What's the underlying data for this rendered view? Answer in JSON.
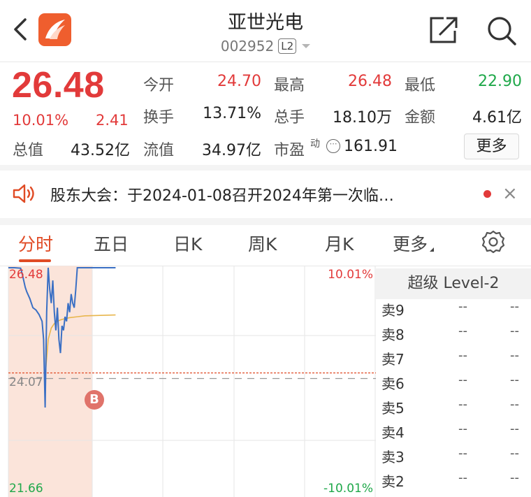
{
  "header": {
    "title": "亚世光电",
    "code": "002952",
    "level_badge": "L2"
  },
  "quote": {
    "price": "26.48",
    "change_pct": "10.01%",
    "change_val": "2.41",
    "stats": [
      {
        "label": "今开",
        "value": "24.70",
        "color": "red"
      },
      {
        "label": "最高",
        "value": "26.48",
        "color": "red"
      },
      {
        "label": "最低",
        "value": "22.90",
        "color": "green"
      },
      {
        "label": "换手",
        "value": "13.71%",
        "color": "black"
      },
      {
        "label": "总手",
        "value": "18.10万",
        "color": "black"
      },
      {
        "label": "金额",
        "value": "4.61亿",
        "color": "black"
      },
      {
        "label": "总值",
        "value": "43.52亿",
        "color": "black"
      },
      {
        "label": "流值",
        "value": "34.97亿",
        "color": "black"
      }
    ],
    "pe": {
      "label": "市盈",
      "superscript": "动",
      "value": "161.91"
    },
    "more_label": "更多"
  },
  "notice": {
    "text": "股东大会：于2024-01-08召开2024年第一次临…"
  },
  "tabs": [
    {
      "label": "分时",
      "active": true
    },
    {
      "label": "五日",
      "active": false
    },
    {
      "label": "日K",
      "active": false
    },
    {
      "label": "周K",
      "active": false
    },
    {
      "label": "月K",
      "active": false
    },
    {
      "label": "更多",
      "active": false
    }
  ],
  "chart_data": {
    "type": "line",
    "title": "分时",
    "y_labels": {
      "top": "26.48",
      "mid": "24.07",
      "bottom": "21.66"
    },
    "pct_labels": {
      "top": "10.01%",
      "bottom": "-10.01%"
    },
    "ylim": [
      21.66,
      26.48
    ],
    "prev_close": 24.07,
    "marker": "B",
    "series": [
      {
        "name": "price",
        "color": "#3a6fc4",
        "x": [
          0,
          4,
          8,
          9,
          10,
          11,
          12,
          14,
          16,
          18,
          20,
          22,
          23,
          24,
          25,
          26,
          27,
          28,
          29,
          30,
          31,
          32,
          33,
          34,
          35,
          36,
          37,
          38,
          39,
          40,
          41,
          42,
          43,
          44,
          45,
          46,
          50,
          60,
          70
        ],
        "values": [
          26.48,
          26.48,
          26.47,
          26.35,
          26.2,
          26.05,
          25.95,
          25.8,
          25.6,
          25.55,
          25.45,
          25.3,
          24.9,
          23.4,
          25.5,
          26.48,
          26.0,
          25.7,
          26.2,
          25.5,
          25.1,
          25.6,
          24.9,
          24.6,
          25.2,
          25.1,
          25.4,
          25.3,
          25.7,
          25.5,
          25.9,
          25.7,
          25.6,
          26.0,
          26.48,
          26.48,
          26.48,
          26.48,
          26.48
        ]
      },
      {
        "name": "avg",
        "color": "#e8b64c",
        "x": [
          24,
          26,
          28,
          30,
          32,
          34,
          36,
          40,
          45,
          50,
          60,
          70
        ],
        "values": [
          24.07,
          24.9,
          25.15,
          25.25,
          25.3,
          25.33,
          25.35,
          25.38,
          25.4,
          25.42,
          25.43,
          25.44
        ]
      }
    ],
    "x_max": 240
  },
  "level2": {
    "title": "超级 Level-2",
    "rows": [
      {
        "name": "卖9",
        "price": "--",
        "vol": "--"
      },
      {
        "name": "卖8",
        "price": "--",
        "vol": "--"
      },
      {
        "name": "卖7",
        "price": "--",
        "vol": "--"
      },
      {
        "name": "卖6",
        "price": "--",
        "vol": "--"
      },
      {
        "name": "卖5",
        "price": "--",
        "vol": "--"
      },
      {
        "name": "卖4",
        "price": "--",
        "vol": "--"
      },
      {
        "name": "卖3",
        "price": "--",
        "vol": "--"
      },
      {
        "name": "卖2",
        "price": "--",
        "vol": "--"
      }
    ]
  }
}
